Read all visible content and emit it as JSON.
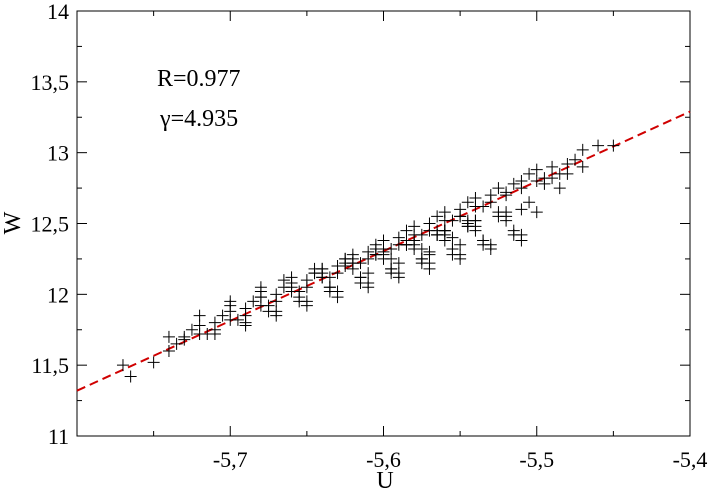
{
  "chart_data": {
    "type": "scatter",
    "title": "",
    "xlabel": "U",
    "ylabel": "W",
    "xlim": [
      -5.8,
      -5.4
    ],
    "ylim": [
      11,
      14
    ],
    "xticks": [
      -5.7,
      -5.6,
      -5.5,
      -5.4
    ],
    "xtick_labels": [
      "-5,7",
      "-5,6",
      "-5,5",
      "-5,4"
    ],
    "yticks": [
      11,
      11.5,
      12,
      12.5,
      13,
      13.5,
      14
    ],
    "ytick_labels": [
      "11",
      "11,5",
      "12",
      "12,5",
      "13",
      "13,5",
      "14"
    ],
    "grid": false,
    "legend": "none",
    "annotations": [
      "R=0.977",
      "γ=4.935"
    ],
    "series": [
      {
        "kind": "scatter",
        "marker": "+",
        "color": "#000000",
        "x": [
          -5.77,
          -5.765,
          -5.75,
          -5.74,
          -5.735,
          -5.73,
          -5.725,
          -5.72,
          -5.715,
          -5.71,
          -5.705,
          -5.7,
          -5.695,
          -5.69,
          -5.685,
          -5.68,
          -5.675,
          -5.67,
          -5.665,
          -5.66,
          -5.655,
          -5.65,
          -5.645,
          -5.64,
          -5.635,
          -5.63,
          -5.625,
          -5.62,
          -5.615,
          -5.61,
          -5.605,
          -5.6,
          -5.595,
          -5.59,
          -5.585,
          -5.58,
          -5.575,
          -5.57,
          -5.565,
          -5.56,
          -5.555,
          -5.55,
          -5.545,
          -5.54,
          -5.535,
          -5.53,
          -5.525,
          -5.52,
          -5.515,
          -5.51,
          -5.505,
          -5.5,
          -5.495,
          -5.49,
          -5.485,
          -5.48,
          -5.475,
          -5.47,
          -5.46,
          -5.45,
          -5.74,
          -5.73,
          -5.72,
          -5.71,
          -5.7,
          -5.69,
          -5.68,
          -5.67,
          -5.66,
          -5.65,
          -5.64,
          -5.63,
          -5.62,
          -5.61,
          -5.6,
          -5.59,
          -5.58,
          -5.57,
          -5.56,
          -5.55,
          -5.54,
          -5.53,
          -5.52,
          -5.51,
          -5.5,
          -5.49,
          -5.72,
          -5.7,
          -5.68,
          -5.66,
          -5.64,
          -5.62,
          -5.6,
          -5.58,
          -5.56,
          -5.54,
          -5.52,
          -5.5,
          -5.71,
          -5.69,
          -5.67,
          -5.65,
          -5.63,
          -5.61,
          -5.59,
          -5.57,
          -5.55,
          -5.53,
          -5.51,
          -5.7,
          -5.68,
          -5.66,
          -5.64,
          -5.62,
          -5.6,
          -5.58,
          -5.56,
          -5.54,
          -5.52,
          -5.69,
          -5.67,
          -5.65,
          -5.63,
          -5.61,
          -5.59,
          -5.57,
          -5.55,
          -5.53,
          -5.51,
          -5.68,
          -5.66,
          -5.64,
          -5.62,
          -5.6,
          -5.58,
          -5.56,
          -5.54,
          -5.52,
          -5.675,
          -5.655,
          -5.635,
          -5.615,
          -5.595,
          -5.575,
          -5.555,
          -5.535,
          -5.515,
          -5.665,
          -5.645,
          -5.625,
          -5.605,
          -5.585,
          -5.565,
          -5.545,
          -5.525,
          -5.505,
          -5.655,
          -5.635,
          -5.615,
          -5.595,
          -5.575,
          -5.555,
          -5.535,
          -5.515,
          -5.645,
          -5.625,
          -5.605,
          -5.585,
          -5.565,
          -5.545,
          -5.525,
          -5.635,
          -5.615,
          -5.595,
          -5.575,
          -5.555,
          -5.535,
          -5.625,
          -5.605,
          -5.585,
          -5.565,
          -5.545,
          -5.61,
          -5.59,
          -5.57,
          -5.55,
          -5.6,
          -5.58,
          -5.56,
          -5.54,
          -5.595,
          -5.575,
          -5.555,
          -5.585,
          -5.565,
          -5.545,
          -5.57,
          -5.56,
          -5.55,
          -5.495,
          -5.48,
          -5.485,
          -5.47,
          -5.51
        ],
        "y": [
          11.5,
          11.42,
          11.52,
          11.6,
          11.65,
          11.7,
          11.75,
          11.78,
          11.72,
          11.8,
          11.85,
          11.88,
          11.82,
          11.9,
          11.95,
          11.98,
          11.92,
          12.0,
          12.05,
          12.08,
          12.02,
          12.1,
          12.15,
          12.18,
          12.12,
          12.2,
          12.25,
          12.28,
          12.22,
          12.3,
          12.35,
          12.38,
          12.32,
          12.4,
          12.45,
          12.48,
          12.42,
          12.5,
          12.55,
          12.58,
          12.52,
          12.6,
          12.65,
          12.68,
          12.62,
          12.7,
          12.75,
          12.72,
          12.78,
          12.8,
          12.85,
          12.88,
          12.82,
          12.9,
          12.85,
          12.92,
          12.95,
          13.02,
          13.05,
          13.05,
          11.7,
          11.68,
          11.72,
          11.75,
          11.82,
          11.85,
          11.92,
          11.95,
          12.02,
          12.05,
          12.12,
          12.15,
          12.22,
          12.25,
          12.32,
          12.35,
          12.42,
          12.45,
          12.52,
          12.55,
          12.62,
          12.65,
          12.7,
          12.75,
          12.8,
          12.82,
          11.85,
          11.92,
          11.98,
          12.05,
          12.12,
          12.18,
          12.25,
          12.32,
          12.38,
          12.45,
          12.52,
          12.58,
          11.72,
          11.78,
          11.85,
          11.92,
          11.98,
          12.05,
          12.12,
          12.18,
          12.25,
          12.32,
          12.38,
          11.95,
          12.02,
          12.08,
          12.15,
          12.22,
          12.28,
          12.35,
          12.42,
          12.48,
          12.55,
          11.8,
          11.88,
          11.95,
          12.02,
          12.08,
          12.15,
          12.22,
          12.28,
          12.35,
          12.42,
          12.05,
          12.12,
          12.18,
          12.25,
          12.32,
          12.38,
          12.45,
          12.52,
          12.58,
          11.88,
          11.95,
          12.02,
          12.08,
          12.15,
          12.22,
          12.28,
          12.35,
          12.42,
          12.1,
          12.18,
          12.25,
          12.32,
          12.38,
          12.45,
          12.52,
          12.58,
          12.65,
          11.98,
          12.05,
          12.12,
          12.18,
          12.25,
          12.32,
          12.38,
          12.45,
          12.15,
          12.22,
          12.28,
          12.35,
          12.42,
          12.48,
          12.55,
          12.05,
          12.12,
          12.18,
          12.25,
          12.32,
          12.38,
          12.2,
          12.28,
          12.35,
          12.42,
          12.48,
          12.15,
          12.22,
          12.28,
          12.35,
          12.3,
          12.38,
          12.45,
          12.52,
          12.25,
          12.32,
          12.4,
          12.35,
          12.42,
          12.5,
          12.3,
          12.45,
          12.55,
          12.78,
          12.85,
          12.75,
          12.9,
          12.6
        ]
      },
      {
        "kind": "line",
        "style": "dashed",
        "color": "#d00000",
        "x": [
          -5.8,
          -5.4
        ],
        "y": [
          11.32,
          13.29
        ]
      }
    ]
  }
}
